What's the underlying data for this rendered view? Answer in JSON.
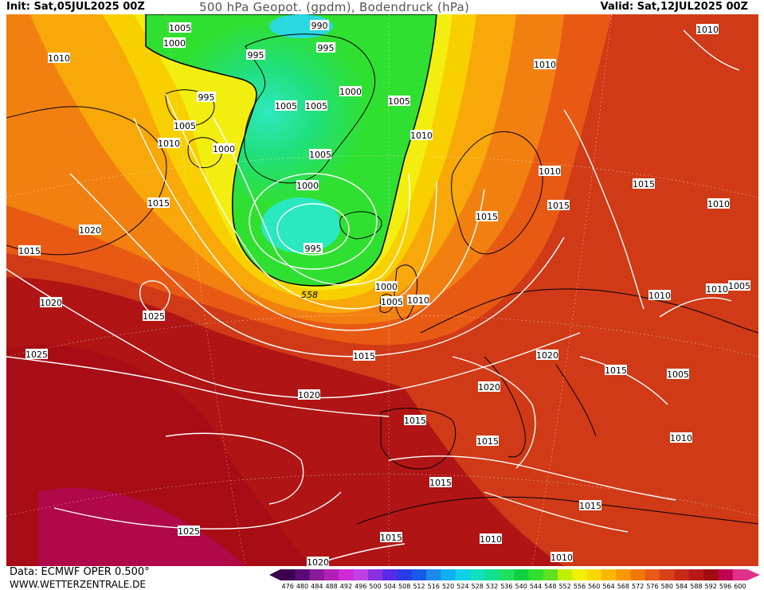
{
  "header": {
    "init": "Init: Sat,05JUL2025 00Z",
    "title": "500 hPa Geopot. (gpdm), Bodendruck (hPa)",
    "valid": "Valid: Sat,12JUL2025 00Z"
  },
  "footer": {
    "data_source": "Data: ECMWF OPER 0.500°",
    "website": "WWW.WETTERZENTRALE.DE"
  },
  "contour_label_558": "558",
  "pressure_labels": [
    {
      "id": "p1",
      "text": "1005"
    },
    {
      "id": "p2",
      "text": "990"
    },
    {
      "id": "p3",
      "text": "1000"
    },
    {
      "id": "p4",
      "text": "995"
    },
    {
      "id": "p5",
      "text": "995"
    },
    {
      "id": "p6",
      "text": "1010"
    },
    {
      "id": "p7",
      "text": "995"
    },
    {
      "id": "p8",
      "text": "1000"
    },
    {
      "id": "p9",
      "text": "1005"
    },
    {
      "id": "p10",
      "text": "1005"
    },
    {
      "id": "p11",
      "text": "1005"
    },
    {
      "id": "p12",
      "text": "1010"
    },
    {
      "id": "p13",
      "text": "1000"
    },
    {
      "id": "p14",
      "text": "1005"
    },
    {
      "id": "p15",
      "text": "1010"
    },
    {
      "id": "p16",
      "text": "1005"
    },
    {
      "id": "p17",
      "text": "1000"
    },
    {
      "id": "p18",
      "text": "1015"
    },
    {
      "id": "p19",
      "text": "1020"
    },
    {
      "id": "p20",
      "text": "995"
    },
    {
      "id": "p21",
      "text": "1015"
    },
    {
      "id": "p22",
      "text": "1000"
    },
    {
      "id": "p23",
      "text": "1005"
    },
    {
      "id": "p24",
      "text": "1010"
    },
    {
      "id": "p25",
      "text": "1020"
    },
    {
      "id": "p26",
      "text": "1025"
    },
    {
      "id": "p27",
      "text": "1025"
    },
    {
      "id": "p28",
      "text": "1015"
    },
    {
      "id": "p29",
      "text": "1020"
    },
    {
      "id": "p30",
      "text": "1015"
    },
    {
      "id": "p31",
      "text": "1015"
    },
    {
      "id": "p32",
      "text": "1015"
    },
    {
      "id": "p33",
      "text": "1020"
    },
    {
      "id": "p34",
      "text": "1020"
    },
    {
      "id": "p35",
      "text": "1015"
    },
    {
      "id": "p36",
      "text": "1015"
    },
    {
      "id": "p37",
      "text": "1015"
    },
    {
      "id": "p38",
      "text": "1010"
    },
    {
      "id": "p39",
      "text": "1015"
    },
    {
      "id": "p40",
      "text": "1010"
    },
    {
      "id": "p41",
      "text": "1015"
    },
    {
      "id": "p42",
      "text": "1015"
    },
    {
      "id": "p43",
      "text": "1010"
    },
    {
      "id": "p44",
      "text": "1010"
    },
    {
      "id": "p45",
      "text": "1010"
    },
    {
      "id": "p46",
      "text": "1010"
    },
    {
      "id": "p47",
      "text": "1005"
    },
    {
      "id": "p48",
      "text": "1005"
    },
    {
      "id": "p49",
      "text": "1010"
    },
    {
      "id": "p50",
      "text": "1010"
    },
    {
      "id": "p51",
      "text": "1010"
    },
    {
      "id": "p52",
      "text": "1025"
    },
    {
      "id": "p53",
      "text": "1020"
    }
  ],
  "color_scale": {
    "labels": [
      "476",
      "480",
      "484",
      "488",
      "492",
      "496",
      "500",
      "504",
      "508",
      "512",
      "516",
      "520",
      "524",
      "528",
      "532",
      "536",
      "540",
      "544",
      "548",
      "552",
      "556",
      "560",
      "564",
      "568",
      "572",
      "576",
      "580",
      "584",
      "588",
      "592",
      "596",
      "600"
    ],
    "colors": [
      "#3b0050",
      "#5a0a78",
      "#8a1a9a",
      "#b020b8",
      "#d02ad8",
      "#c040e8",
      "#8a30e0",
      "#5a2ae8",
      "#2a3ae8",
      "#1a5ae8",
      "#1a8ae8",
      "#10b0f0",
      "#10d0e8",
      "#10e0c0",
      "#10e090",
      "#20e060",
      "#10d040",
      "#30e030",
      "#60e020",
      "#c0f000",
      "#f0f000",
      "#f8d800",
      "#f8b800",
      "#f89800",
      "#f07800",
      "#e85818",
      "#d84018",
      "#c82818",
      "#b81818",
      "#a00c10",
      "#c00050",
      "#e0308a"
    ]
  },
  "colors": {
    "geopot_green": "#22e070",
    "geopot_cyan": "#2ae8b8",
    "geopot_yellow": "#f2ee10",
    "geopot_orange": "#f49808",
    "geopot_red": "#c02010",
    "isobar": "#ffffff",
    "coast": "#000000"
  }
}
